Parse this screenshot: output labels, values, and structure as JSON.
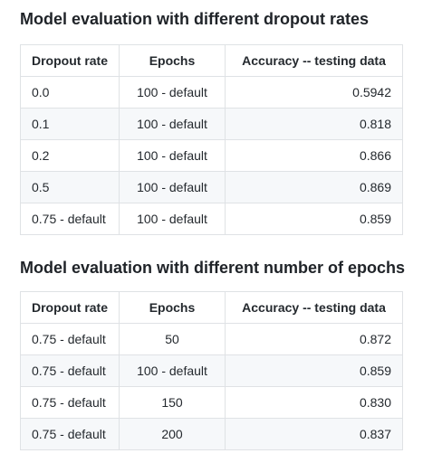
{
  "section1": {
    "title": "Model evaluation with different dropout rates",
    "headers": [
      "Dropout rate",
      "Epochs",
      "Accuracy -- testing data"
    ],
    "rows": [
      [
        "0.0",
        "100 - default",
        "0.5942"
      ],
      [
        "0.1",
        "100 - default",
        "0.818"
      ],
      [
        "0.2",
        "100 - default",
        "0.866"
      ],
      [
        "0.5",
        "100 - default",
        "0.869"
      ],
      [
        "0.75 - default",
        "100 - default",
        "0.859"
      ]
    ]
  },
  "section2": {
    "title": "Model evaluation with different number of epochs",
    "headers": [
      "Dropout rate",
      "Epochs",
      "Accuracy -- testing data"
    ],
    "rows": [
      [
        "0.75 - default",
        "50",
        "0.872"
      ],
      [
        "0.75 - default",
        "100 - default",
        "0.859"
      ],
      [
        "0.75 - default",
        "150",
        "0.830"
      ],
      [
        "0.75 - default",
        "200",
        "0.837"
      ]
    ]
  }
}
